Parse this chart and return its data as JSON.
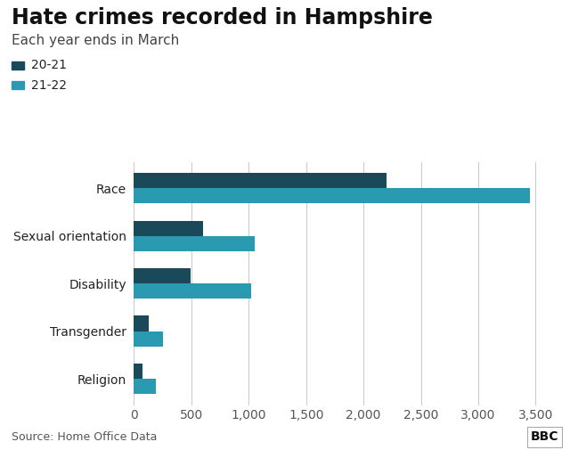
{
  "title": "Hate crimes recorded in Hampshire",
  "subtitle": "Each year ends in March",
  "categories": [
    "Race",
    "Sexual orientation",
    "Disability",
    "Transgender",
    "Religion"
  ],
  "values_2021": [
    2200,
    600,
    490,
    125,
    75
  ],
  "values_2022": [
    3450,
    1050,
    1020,
    250,
    190
  ],
  "color_2021": "#1a4a5a",
  "color_2022": "#2a9ab0",
  "legend_labels": [
    "20-21",
    "21-22"
  ],
  "xlim": [
    0,
    3700
  ],
  "xticks": [
    0,
    500,
    1000,
    1500,
    2000,
    2500,
    3000,
    3500
  ],
  "source_text": "Source: Home Office Data",
  "bbc_text": "BBC",
  "background_color": "#ffffff",
  "title_fontsize": 17,
  "subtitle_fontsize": 11,
  "tick_fontsize": 10,
  "legend_fontsize": 10
}
